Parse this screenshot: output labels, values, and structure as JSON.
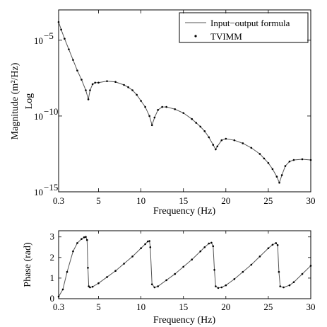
{
  "chart_data": [
    {
      "type": "line",
      "xlabel": "Frequency (Hz)",
      "ylabel": "Magnitude (m²/Hz)",
      "ylabel_sub": "Log",
      "y_scale": "log",
      "xlim": [
        0.3,
        30
      ],
      "ylim_exponent": [
        -15,
        -3
      ],
      "x_ticks": [
        0.3,
        5,
        10,
        15,
        20,
        25,
        30
      ],
      "x_tick_labels": [
        "0.3",
        "5",
        "10",
        "15",
        "20",
        "25",
        "30"
      ],
      "y_tick_exponents": [
        -5,
        -10,
        -15
      ],
      "y_tick_labels": [
        {
          "base": "10",
          "exp": "−5"
        },
        {
          "base": "10",
          "exp": "−10"
        },
        {
          "base": "10",
          "exp": "−15"
        }
      ],
      "legend": {
        "placement": "top-right",
        "entries": [
          {
            "label": "Input−output formula",
            "style": "line",
            "color": "#555555"
          },
          {
            "label": "TVIMM",
            "style": "dot",
            "color": "#000000"
          }
        ]
      },
      "series": [
        {
          "name": "Input−output formula",
          "kind": "log10_magnitude",
          "x": [
            0.3,
            0.6,
            1.0,
            1.5,
            2.0,
            2.5,
            3.0,
            3.5,
            3.8,
            4.0,
            4.3,
            4.6,
            5.0,
            6.0,
            7.0,
            8.0,
            8.5,
            9.0,
            9.5,
            10.0,
            10.5,
            11.0,
            11.3,
            11.6,
            12.0,
            12.5,
            13.0,
            14.0,
            15.0,
            16.0,
            16.5,
            17.0,
            17.5,
            18.0,
            18.5,
            18.8,
            19.0,
            19.5,
            20.0,
            21.0,
            22.0,
            23.0,
            24.0,
            24.5,
            25.0,
            25.5,
            26.0,
            26.3,
            26.6,
            27.0,
            27.5,
            28.0,
            29.0,
            30.0
          ],
          "y": [
            -3.8,
            -4.3,
            -4.9,
            -5.6,
            -6.3,
            -7.0,
            -7.6,
            -8.3,
            -8.9,
            -8.3,
            -7.9,
            -7.8,
            -7.8,
            -7.7,
            -7.75,
            -7.95,
            -8.1,
            -8.3,
            -8.6,
            -9.0,
            -9.4,
            -10.0,
            -10.6,
            -10.1,
            -9.6,
            -9.4,
            -9.4,
            -9.55,
            -9.8,
            -10.2,
            -10.45,
            -10.7,
            -11.0,
            -11.4,
            -11.9,
            -12.2,
            -12.0,
            -11.6,
            -11.5,
            -11.6,
            -11.8,
            -12.1,
            -12.5,
            -12.8,
            -13.1,
            -13.5,
            -14.0,
            -14.4,
            -13.9,
            -13.3,
            -13.0,
            -12.9,
            -12.85,
            -12.9
          ]
        },
        {
          "name": "TVIMM",
          "kind": "log10_magnitude",
          "markers": "dots",
          "x": [
            0.3,
            0.6,
            1.0,
            1.5,
            2.0,
            2.5,
            3.0,
            3.5,
            3.8,
            4.0,
            4.3,
            4.6,
            5.0,
            6.0,
            7.0,
            8.0,
            8.5,
            9.0,
            9.5,
            10.0,
            10.5,
            11.0,
            11.3,
            11.6,
            12.0,
            12.5,
            13.0,
            14.0,
            15.0,
            16.0,
            16.5,
            17.0,
            17.5,
            18.0,
            18.5,
            18.8,
            19.0,
            19.5,
            20.0,
            21.0,
            22.0,
            23.0,
            24.0,
            24.5,
            25.0,
            25.5,
            26.0,
            26.3,
            26.6,
            27.0,
            27.5,
            28.0,
            29.0,
            30.0
          ],
          "y": [
            -3.8,
            -4.3,
            -4.9,
            -5.6,
            -6.3,
            -7.0,
            -7.6,
            -8.3,
            -8.9,
            -8.3,
            -7.9,
            -7.8,
            -7.8,
            -7.7,
            -7.75,
            -7.95,
            -8.1,
            -8.3,
            -8.6,
            -9.0,
            -9.4,
            -10.0,
            -10.6,
            -10.1,
            -9.6,
            -9.4,
            -9.4,
            -9.55,
            -9.8,
            -10.2,
            -10.45,
            -10.7,
            -11.0,
            -11.4,
            -11.9,
            -12.2,
            -12.0,
            -11.6,
            -11.5,
            -11.6,
            -11.8,
            -12.1,
            -12.5,
            -12.8,
            -13.1,
            -13.5,
            -14.0,
            -14.4,
            -13.9,
            -13.3,
            -13.0,
            -12.9,
            -12.85,
            -12.9
          ]
        }
      ]
    },
    {
      "type": "line",
      "xlabel": "Frequency (Hz)",
      "ylabel": "Phase (rad)",
      "xlim": [
        0.3,
        30
      ],
      "ylim": [
        0,
        3.3
      ],
      "x_ticks": [
        0.3,
        5,
        10,
        15,
        20,
        25,
        30
      ],
      "x_tick_labels": [
        "0.3",
        "5",
        "10",
        "15",
        "20",
        "25",
        "30"
      ],
      "y_ticks": [
        0,
        1,
        2,
        3
      ],
      "y_tick_labels": [
        "0",
        "1",
        "2",
        "3"
      ],
      "series": [
        {
          "name": "Input−output formula",
          "x": [
            0.3,
            0.8,
            1.3,
            2.0,
            2.5,
            3.0,
            3.3,
            3.5,
            3.65,
            3.75,
            3.85,
            4.0,
            4.3,
            5.0,
            6.0,
            7.0,
            8.0,
            9.0,
            10.0,
            10.5,
            10.8,
            11.0,
            11.1,
            11.3,
            11.6,
            12.0,
            13.0,
            14.0,
            15.0,
            16.0,
            17.0,
            17.5,
            18.0,
            18.3,
            18.5,
            18.65,
            18.8,
            19.1,
            19.5,
            20.0,
            21.0,
            22.0,
            23.0,
            24.0,
            25.0,
            25.5,
            25.9,
            26.1,
            26.25,
            26.4,
            26.8,
            27.5,
            28.0,
            29.0,
            30.0
          ],
          "y": [
            0.1,
            0.45,
            1.3,
            2.3,
            2.7,
            2.9,
            2.98,
            3.0,
            2.85,
            1.5,
            0.6,
            0.55,
            0.58,
            0.75,
            1.05,
            1.35,
            1.7,
            2.05,
            2.45,
            2.65,
            2.78,
            2.8,
            2.5,
            0.7,
            0.55,
            0.6,
            0.9,
            1.2,
            1.55,
            1.9,
            2.3,
            2.5,
            2.68,
            2.72,
            2.55,
            1.4,
            0.6,
            0.52,
            0.55,
            0.65,
            0.95,
            1.3,
            1.65,
            2.05,
            2.45,
            2.62,
            2.7,
            2.6,
            1.3,
            0.6,
            0.55,
            0.65,
            0.8,
            1.2,
            1.6
          ]
        },
        {
          "name": "TVIMM",
          "markers": "dots",
          "x": [
            0.3,
            0.8,
            1.3,
            2.0,
            2.5,
            3.0,
            3.3,
            3.5,
            3.65,
            3.75,
            3.85,
            4.0,
            4.3,
            5.0,
            6.0,
            7.0,
            8.0,
            9.0,
            10.0,
            10.5,
            10.8,
            11.0,
            11.1,
            11.3,
            11.6,
            12.0,
            13.0,
            14.0,
            15.0,
            16.0,
            17.0,
            17.5,
            18.0,
            18.3,
            18.5,
            18.65,
            18.8,
            19.1,
            19.5,
            20.0,
            21.0,
            22.0,
            23.0,
            24.0,
            25.0,
            25.5,
            25.9,
            26.1,
            26.25,
            26.4,
            26.8,
            27.5,
            28.0,
            29.0,
            30.0
          ],
          "y": [
            0.1,
            0.45,
            1.3,
            2.3,
            2.7,
            2.9,
            2.98,
            3.0,
            2.85,
            1.5,
            0.6,
            0.55,
            0.58,
            0.75,
            1.05,
            1.35,
            1.7,
            2.05,
            2.45,
            2.65,
            2.78,
            2.8,
            2.5,
            0.7,
            0.55,
            0.6,
            0.9,
            1.2,
            1.55,
            1.9,
            2.3,
            2.5,
            2.68,
            2.72,
            2.55,
            1.4,
            0.6,
            0.52,
            0.55,
            0.65,
            0.95,
            1.3,
            1.65,
            2.05,
            2.45,
            2.62,
            2.7,
            2.6,
            1.3,
            0.6,
            0.55,
            0.65,
            0.8,
            1.2,
            1.6
          ]
        }
      ]
    }
  ]
}
